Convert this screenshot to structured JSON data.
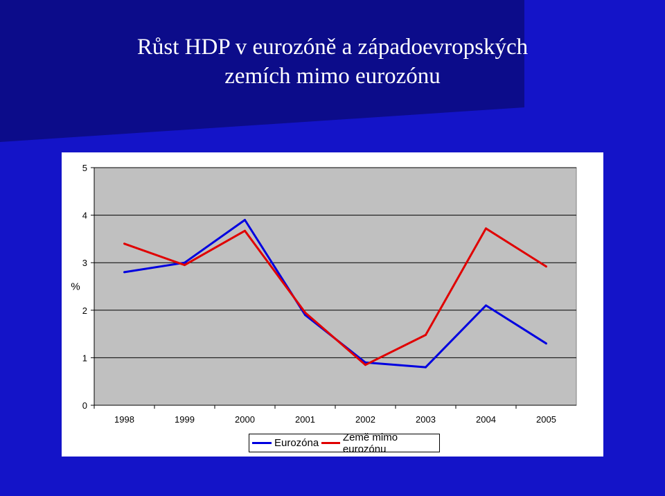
{
  "slide": {
    "title_line1": "Růst HDP v eurozóně a západoevropských",
    "title_line2": "zemích mimo eurozónu",
    "colors": {
      "background": "#1414c8",
      "top_band": "#0c0c8a",
      "plot_area": "#c0c0c0"
    }
  },
  "chart_data": {
    "type": "line",
    "title": "",
    "xlabel": "",
    "ylabel": "%",
    "categories": [
      "1998",
      "1999",
      "2000",
      "2001",
      "2002",
      "2003",
      "2004",
      "2005"
    ],
    "ylim": [
      0,
      5
    ],
    "yticks": [
      0,
      1,
      2,
      3,
      4,
      5
    ],
    "grid": true,
    "legend": "bottom",
    "series": [
      {
        "name": "Eurozóna",
        "color": "#0000e0",
        "values": [
          2.8,
          3.0,
          3.9,
          1.9,
          0.9,
          0.8,
          2.1,
          1.3
        ]
      },
      {
        "name": "Země mimo eurozónu",
        "color": "#e00000",
        "values": [
          3.4,
          2.95,
          3.67,
          1.95,
          0.85,
          1.48,
          3.72,
          2.92
        ]
      }
    ]
  }
}
